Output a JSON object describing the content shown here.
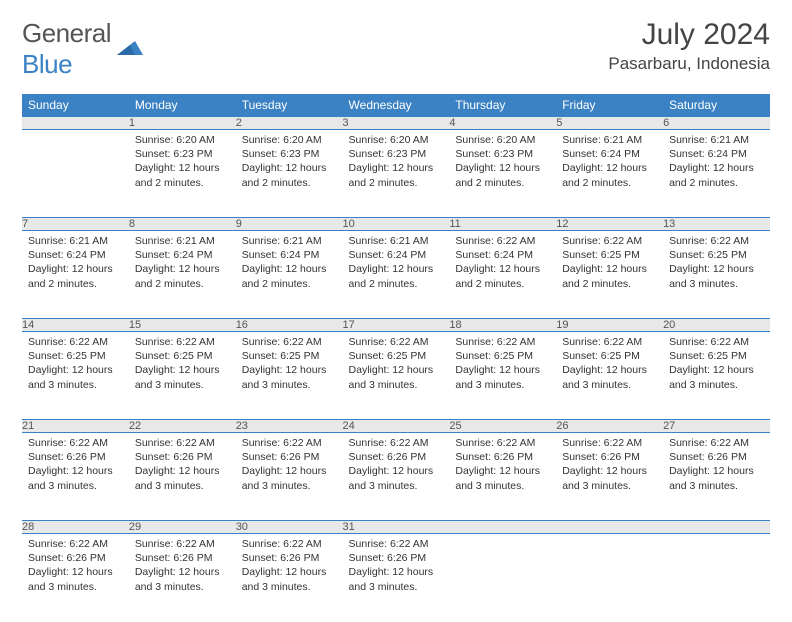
{
  "logo": {
    "text1": "General",
    "text2": "Blue"
  },
  "title": "July 2024",
  "location": "Pasarbaru, Indonesia",
  "colors": {
    "header_bg": "#3b82c4",
    "header_text": "#ffffff",
    "daynum_bg": "#e8e8e8",
    "border": "#3b82c4",
    "text": "#333333"
  },
  "weekdays": [
    "Sunday",
    "Monday",
    "Tuesday",
    "Wednesday",
    "Thursday",
    "Friday",
    "Saturday"
  ],
  "weeks": [
    [
      null,
      {
        "n": "1",
        "sr": "6:20 AM",
        "ss": "6:23 PM",
        "dl": "12 hours and 2 minutes."
      },
      {
        "n": "2",
        "sr": "6:20 AM",
        "ss": "6:23 PM",
        "dl": "12 hours and 2 minutes."
      },
      {
        "n": "3",
        "sr": "6:20 AM",
        "ss": "6:23 PM",
        "dl": "12 hours and 2 minutes."
      },
      {
        "n": "4",
        "sr": "6:20 AM",
        "ss": "6:23 PM",
        "dl": "12 hours and 2 minutes."
      },
      {
        "n": "5",
        "sr": "6:21 AM",
        "ss": "6:24 PM",
        "dl": "12 hours and 2 minutes."
      },
      {
        "n": "6",
        "sr": "6:21 AM",
        "ss": "6:24 PM",
        "dl": "12 hours and 2 minutes."
      }
    ],
    [
      {
        "n": "7",
        "sr": "6:21 AM",
        "ss": "6:24 PM",
        "dl": "12 hours and 2 minutes."
      },
      {
        "n": "8",
        "sr": "6:21 AM",
        "ss": "6:24 PM",
        "dl": "12 hours and 2 minutes."
      },
      {
        "n": "9",
        "sr": "6:21 AM",
        "ss": "6:24 PM",
        "dl": "12 hours and 2 minutes."
      },
      {
        "n": "10",
        "sr": "6:21 AM",
        "ss": "6:24 PM",
        "dl": "12 hours and 2 minutes."
      },
      {
        "n": "11",
        "sr": "6:22 AM",
        "ss": "6:24 PM",
        "dl": "12 hours and 2 minutes."
      },
      {
        "n": "12",
        "sr": "6:22 AM",
        "ss": "6:25 PM",
        "dl": "12 hours and 2 minutes."
      },
      {
        "n": "13",
        "sr": "6:22 AM",
        "ss": "6:25 PM",
        "dl": "12 hours and 3 minutes."
      }
    ],
    [
      {
        "n": "14",
        "sr": "6:22 AM",
        "ss": "6:25 PM",
        "dl": "12 hours and 3 minutes."
      },
      {
        "n": "15",
        "sr": "6:22 AM",
        "ss": "6:25 PM",
        "dl": "12 hours and 3 minutes."
      },
      {
        "n": "16",
        "sr": "6:22 AM",
        "ss": "6:25 PM",
        "dl": "12 hours and 3 minutes."
      },
      {
        "n": "17",
        "sr": "6:22 AM",
        "ss": "6:25 PM",
        "dl": "12 hours and 3 minutes."
      },
      {
        "n": "18",
        "sr": "6:22 AM",
        "ss": "6:25 PM",
        "dl": "12 hours and 3 minutes."
      },
      {
        "n": "19",
        "sr": "6:22 AM",
        "ss": "6:25 PM",
        "dl": "12 hours and 3 minutes."
      },
      {
        "n": "20",
        "sr": "6:22 AM",
        "ss": "6:25 PM",
        "dl": "12 hours and 3 minutes."
      }
    ],
    [
      {
        "n": "21",
        "sr": "6:22 AM",
        "ss": "6:26 PM",
        "dl": "12 hours and 3 minutes."
      },
      {
        "n": "22",
        "sr": "6:22 AM",
        "ss": "6:26 PM",
        "dl": "12 hours and 3 minutes."
      },
      {
        "n": "23",
        "sr": "6:22 AM",
        "ss": "6:26 PM",
        "dl": "12 hours and 3 minutes."
      },
      {
        "n": "24",
        "sr": "6:22 AM",
        "ss": "6:26 PM",
        "dl": "12 hours and 3 minutes."
      },
      {
        "n": "25",
        "sr": "6:22 AM",
        "ss": "6:26 PM",
        "dl": "12 hours and 3 minutes."
      },
      {
        "n": "26",
        "sr": "6:22 AM",
        "ss": "6:26 PM",
        "dl": "12 hours and 3 minutes."
      },
      {
        "n": "27",
        "sr": "6:22 AM",
        "ss": "6:26 PM",
        "dl": "12 hours and 3 minutes."
      }
    ],
    [
      {
        "n": "28",
        "sr": "6:22 AM",
        "ss": "6:26 PM",
        "dl": "12 hours and 3 minutes."
      },
      {
        "n": "29",
        "sr": "6:22 AM",
        "ss": "6:26 PM",
        "dl": "12 hours and 3 minutes."
      },
      {
        "n": "30",
        "sr": "6:22 AM",
        "ss": "6:26 PM",
        "dl": "12 hours and 3 minutes."
      },
      {
        "n": "31",
        "sr": "6:22 AM",
        "ss": "6:26 PM",
        "dl": "12 hours and 3 minutes."
      },
      null,
      null,
      null
    ]
  ],
  "labels": {
    "sunrise": "Sunrise:",
    "sunset": "Sunset:",
    "daylight": "Daylight:"
  }
}
